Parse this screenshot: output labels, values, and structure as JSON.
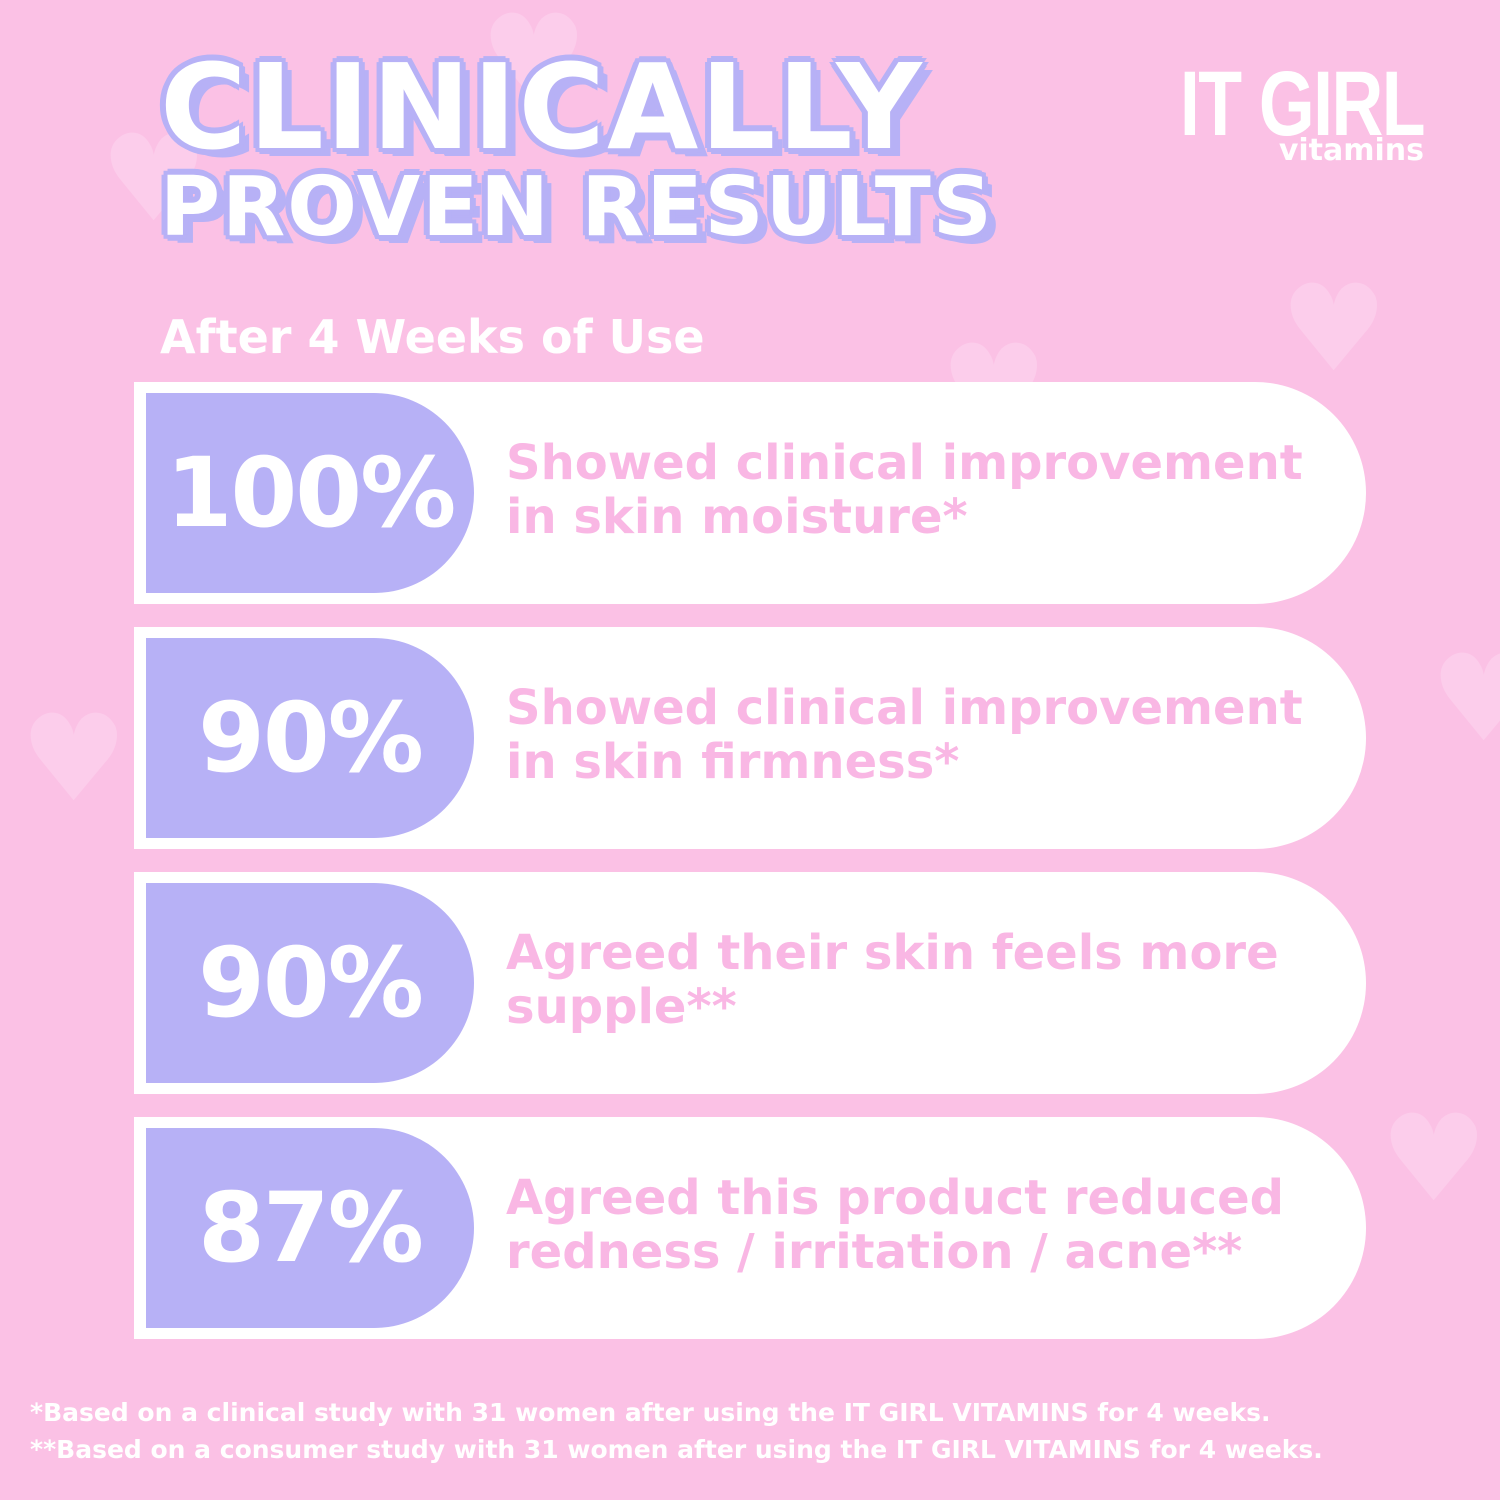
{
  "colors": {
    "background": "#fbc1e5",
    "accent_lavender": "#b7b1f6",
    "card": "#ffffff",
    "description_pink": "#f9b7e4",
    "text_white": "#ffffff"
  },
  "header": {
    "title_line1": "CLINICALLY",
    "title_line2": "PROVEN RESULTS"
  },
  "logo": {
    "main": "IT GIRL",
    "sub": "vitamins"
  },
  "subheading": "After 4 Weeks of Use",
  "stats": [
    {
      "percent": "100%",
      "description": "Showed clinical improvement in skin moisture*"
    },
    {
      "percent": "90%",
      "description": "Showed clinical improvement in skin firmness*"
    },
    {
      "percent": "90%",
      "description": "Agreed their skin feels more supple**"
    },
    {
      "percent": "87%",
      "description": "Agreed this product reduced redness / irritation / acne**"
    }
  ],
  "footnotes": [
    "*Based on a clinical study with 31 women after using the IT GIRL VITAMINS for 4 weeks.",
    "**Based on a consumer study with 31 women after using the IT GIRL VITAMINS for 4 weeks."
  ],
  "decorations": {
    "heart_icon": "heart-icon"
  }
}
